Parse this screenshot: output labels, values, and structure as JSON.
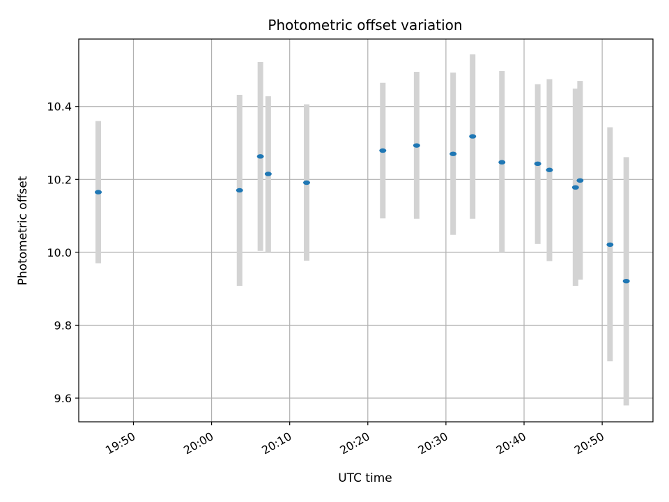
{
  "chart_data": {
    "type": "scatter",
    "title": "Photometric offset variation",
    "xlabel": "UTC time",
    "ylabel": "Photometric offset",
    "xlim": [
      "19:43:00",
      "20:56:30"
    ],
    "ylim": [
      9.535,
      10.585
    ],
    "x_ticks": [
      "19:50",
      "20:00",
      "20:10",
      "20:20",
      "20:30",
      "20:40",
      "20:50"
    ],
    "y_ticks": [
      9.6,
      9.8,
      10.0,
      10.2,
      10.4
    ],
    "y_tick_labels": [
      "9.6",
      "9.8",
      "10.0",
      "10.2",
      "10.4"
    ],
    "grid": true,
    "colors": {
      "point": "#1f77b4",
      "errorbar": "#d3d3d3",
      "grid": "#b0b0b0"
    },
    "points": [
      {
        "time": "19:45:30",
        "value": 10.165,
        "err_low": 9.97,
        "err_high": 10.36
      },
      {
        "time": "20:03:35",
        "value": 10.17,
        "err_low": 9.908,
        "err_high": 10.432
      },
      {
        "time": "20:06:15",
        "value": 10.263,
        "err_low": 10.004,
        "err_high": 10.522
      },
      {
        "time": "20:07:15",
        "value": 10.215,
        "err_low": 10.0,
        "err_high": 10.428
      },
      {
        "time": "20:12:10",
        "value": 10.191,
        "err_low": 9.977,
        "err_high": 10.406
      },
      {
        "time": "20:21:55",
        "value": 10.279,
        "err_low": 10.093,
        "err_high": 10.465
      },
      {
        "time": "20:26:15",
        "value": 10.293,
        "err_low": 10.092,
        "err_high": 10.495
      },
      {
        "time": "20:30:55",
        "value": 10.27,
        "err_low": 10.048,
        "err_high": 10.493
      },
      {
        "time": "20:33:25",
        "value": 10.318,
        "err_low": 10.092,
        "err_high": 10.543
      },
      {
        "time": "20:37:10",
        "value": 10.247,
        "err_low": 9.998,
        "err_high": 10.497
      },
      {
        "time": "20:41:45",
        "value": 10.243,
        "err_low": 10.023,
        "err_high": 10.461
      },
      {
        "time": "20:43:15",
        "value": 10.226,
        "err_low": 9.976,
        "err_high": 10.475
      },
      {
        "time": "20:46:35",
        "value": 10.178,
        "err_low": 9.908,
        "err_high": 10.449
      },
      {
        "time": "20:47:10",
        "value": 10.197,
        "err_low": 9.925,
        "err_high": 10.47
      },
      {
        "time": "20:51:00",
        "value": 10.021,
        "err_low": 9.701,
        "err_high": 10.343
      },
      {
        "time": "20:53:05",
        "value": 9.921,
        "err_low": 9.58,
        "err_high": 10.261
      }
    ]
  }
}
